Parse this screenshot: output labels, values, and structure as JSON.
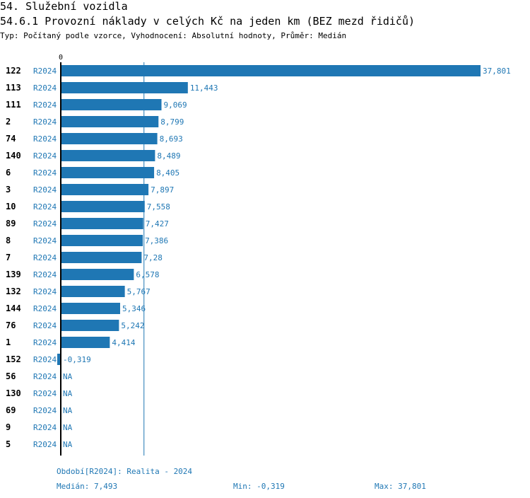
{
  "header": {
    "title": "54. Služební vozidla",
    "subtitle": "54.6.1 Provozní náklady v celých Kč na jeden km (BEZ mezd řidičů)",
    "type_line": "Typ: Počítaný podle vzorce, Vyhodnocení: Absolutní hodnoty, Průměr: Medián"
  },
  "footer": {
    "period": "Období[R2024]: Realita - 2024",
    "median": "Medián: 7,493",
    "min": "Min: -0,319",
    "max": "Max: 37,801"
  },
  "colors": {
    "bar": "#1f77b4",
    "text": "#000000",
    "median_line": "#1f77b4"
  },
  "chart_data": {
    "type": "bar",
    "orientation": "horizontal",
    "title": "54.6.1 Provozní náklady v celých Kč na jeden km (BEZ mezd řidičů)",
    "xlim": [
      0,
      37.801
    ],
    "tick_labels": [
      "0"
    ],
    "median": 7.493,
    "period_label": "R2024",
    "categories": [
      "122",
      "113",
      "111",
      "2",
      "74",
      "140",
      "6",
      "3",
      "10",
      "89",
      "8",
      "7",
      "139",
      "132",
      "144",
      "76",
      "1",
      "152",
      "56",
      "130",
      "69",
      "9",
      "5"
    ],
    "values": [
      37.801,
      11.443,
      9.069,
      8.799,
      8.693,
      8.489,
      8.405,
      7.897,
      7.558,
      7.427,
      7.386,
      7.28,
      6.578,
      5.767,
      5.346,
      5.242,
      4.414,
      -0.319,
      null,
      null,
      null,
      null,
      null
    ],
    "value_labels": [
      "37,801",
      "11,443",
      "9,069",
      "8,799",
      "8,693",
      "8,489",
      "8,405",
      "7,897",
      "7,558",
      "7,427",
      "7,386",
      "7,28",
      "6,578",
      "5,767",
      "5,346",
      "5,242",
      "4,414",
      "-0,319",
      "NA",
      "NA",
      "NA",
      "NA",
      "NA"
    ]
  }
}
